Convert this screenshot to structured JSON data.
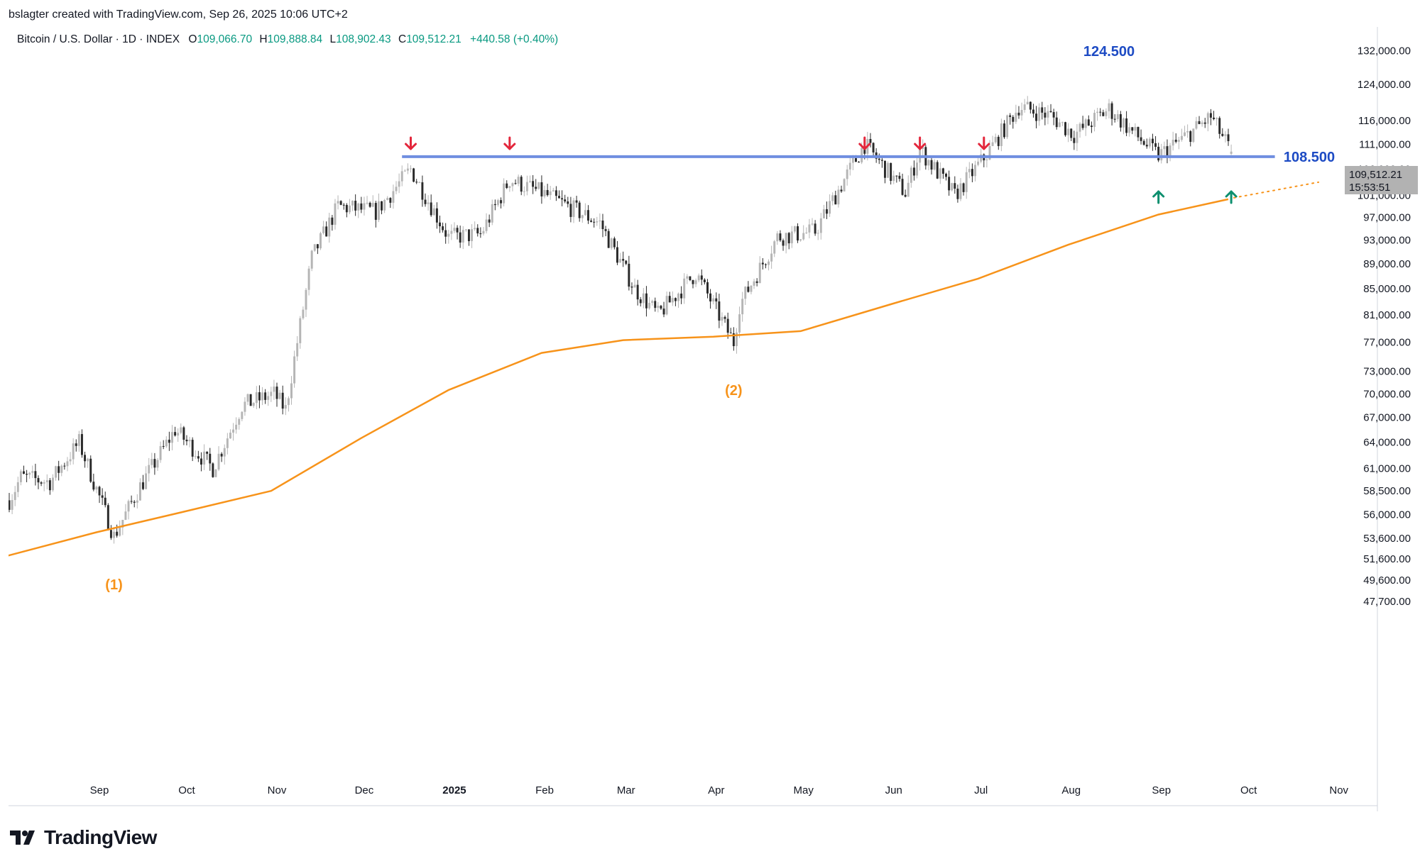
{
  "header": {
    "byline": "bslagter created with TradingView.com, Sep 26, 2025 10:06 UTC+2"
  },
  "legend": {
    "symbol": "Bitcoin / U.S. Dollar · 1D · INDEX",
    "o_label": "O",
    "o_value": "109,066.70",
    "h_label": "H",
    "h_value": "109,888.84",
    "l_label": "L",
    "l_value": "108,902.43",
    "c_label": "C",
    "c_value": "109,512.21",
    "change": "+440.58 (+0.40%)"
  },
  "price_label": {
    "value": "109,512.21",
    "countdown": "15:53:51"
  },
  "brand": {
    "name": "TradingView"
  },
  "colors": {
    "up_candle": "#b5b5b5",
    "down_candle": "#2a2a2a",
    "support": "#6f8ee0",
    "support_label": "#1d4bc4",
    "ma": "#f7931a",
    "arrow_down": "#e3263b",
    "arrow_up": "#0c8f6e",
    "legend_value": "#089981"
  },
  "chart_data": {
    "type": "candlestick",
    "y_scale": "log",
    "grid": false,
    "y_ticks": [
      "132,000.00",
      "124,000.00",
      "116,000.00",
      "111,000.00",
      "106,000.00",
      "101,000.00",
      "97,000.00",
      "93,000.00",
      "89,000.00",
      "85,000.00",
      "81,000.00",
      "77,000.00",
      "73,000.00",
      "70,000.00",
      "67,000.00",
      "64,000.00",
      "61,000.00",
      "58,500.00",
      "56,000.00",
      "53,600.00",
      "51,600.00",
      "49,600.00",
      "47,700.00"
    ],
    "x_ticks": [
      {
        "label": "Sep",
        "date": "2024-09-01",
        "bold": false
      },
      {
        "label": "Oct",
        "date": "2024-10-01",
        "bold": false
      },
      {
        "label": "Nov",
        "date": "2024-11-01",
        "bold": false
      },
      {
        "label": "Dec",
        "date": "2024-12-01",
        "bold": false
      },
      {
        "label": "2025",
        "date": "2025-01-01",
        "bold": true
      },
      {
        "label": "Feb",
        "date": "2025-02-01",
        "bold": false
      },
      {
        "label": "Mar",
        "date": "2025-03-01",
        "bold": false
      },
      {
        "label": "Apr",
        "date": "2025-04-01",
        "bold": false
      },
      {
        "label": "May",
        "date": "2025-05-01",
        "bold": false
      },
      {
        "label": "Jun",
        "date": "2025-06-01",
        "bold": false
      },
      {
        "label": "Jul",
        "date": "2025-07-01",
        "bold": false
      },
      {
        "label": "Aug",
        "date": "2025-08-01",
        "bold": false
      },
      {
        "label": "Sep",
        "date": "2025-09-01",
        "bold": false
      },
      {
        "label": "Oct",
        "date": "2025-10-01",
        "bold": false
      },
      {
        "label": "Nov",
        "date": "2025-11-01",
        "bold": false
      }
    ],
    "series": {
      "dates": [
        "2024-08-01",
        "2024-08-05",
        "2024-08-15",
        "2024-08-25",
        "2024-09-06",
        "2024-09-15",
        "2024-09-27",
        "2024-10-10",
        "2024-10-20",
        "2024-10-31",
        "2024-11-04",
        "2024-11-13",
        "2024-11-22",
        "2024-12-05",
        "2024-12-17",
        "2024-12-30",
        "2025-01-10",
        "2025-01-20",
        "2025-01-31",
        "2025-02-20",
        "2025-03-04",
        "2025-03-12",
        "2025-03-25",
        "2025-04-07",
        "2025-04-09",
        "2025-04-22",
        "2025-05-05",
        "2025-05-15",
        "2025-05-22",
        "2025-06-05",
        "2025-06-10",
        "2025-06-22",
        "2025-07-03",
        "2025-07-14",
        "2025-07-25",
        "2025-08-02",
        "2025-08-14",
        "2025-08-23",
        "2025-08-31",
        "2025-09-08",
        "2025-09-18",
        "2025-09-25"
      ],
      "close": [
        57500,
        60000,
        59500,
        64000,
        53800,
        59000,
        65500,
        61000,
        68500,
        70000,
        68000,
        90000,
        99000,
        98000,
        106000,
        93500,
        94000,
        104000,
        101500,
        96000,
        85000,
        81000,
        87500,
        77000,
        82500,
        93500,
        94500,
        104000,
        111000,
        101500,
        110000,
        101000,
        109000,
        119000,
        117000,
        113000,
        118500,
        113000,
        108700,
        112000,
        116800,
        109512
      ]
    },
    "moving_average": {
      "dates": [
        "2024-07-26",
        "2024-08-31",
        "2024-09-30",
        "2024-10-30",
        "2024-11-30",
        "2024-12-30",
        "2025-01-31",
        "2025-02-28",
        "2025-03-31",
        "2025-04-30",
        "2025-05-31",
        "2025-06-30",
        "2025-07-31",
        "2025-08-31",
        "2025-09-24"
      ],
      "values": [
        51500,
        54200,
        56300,
        58500,
        64500,
        70500,
        75500,
        77300,
        77800,
        78600,
        82600,
        86600,
        92200,
        97500,
        100300
      ],
      "projection_end_date": "2025-10-25",
      "projection_end_value": 103500
    },
    "annotations": {
      "support_level": 108500,
      "support_label": "108.500",
      "peak_label": "124.500",
      "peak_date": "2025-08-14",
      "peak_value": 124500,
      "touch_1_label": "(1)",
      "touch_1_date": "2024-09-06",
      "touch_1_value": 52000,
      "touch_2_label": "(2)",
      "touch_2_date": "2025-04-07",
      "touch_2_value": 74500,
      "down_arrow_dates": [
        "2024-12-17",
        "2025-01-20",
        "2025-05-22",
        "2025-06-10",
        "2025-07-02"
      ],
      "up_arrow_dates": [
        "2025-08-31",
        "2025-09-25"
      ]
    }
  }
}
